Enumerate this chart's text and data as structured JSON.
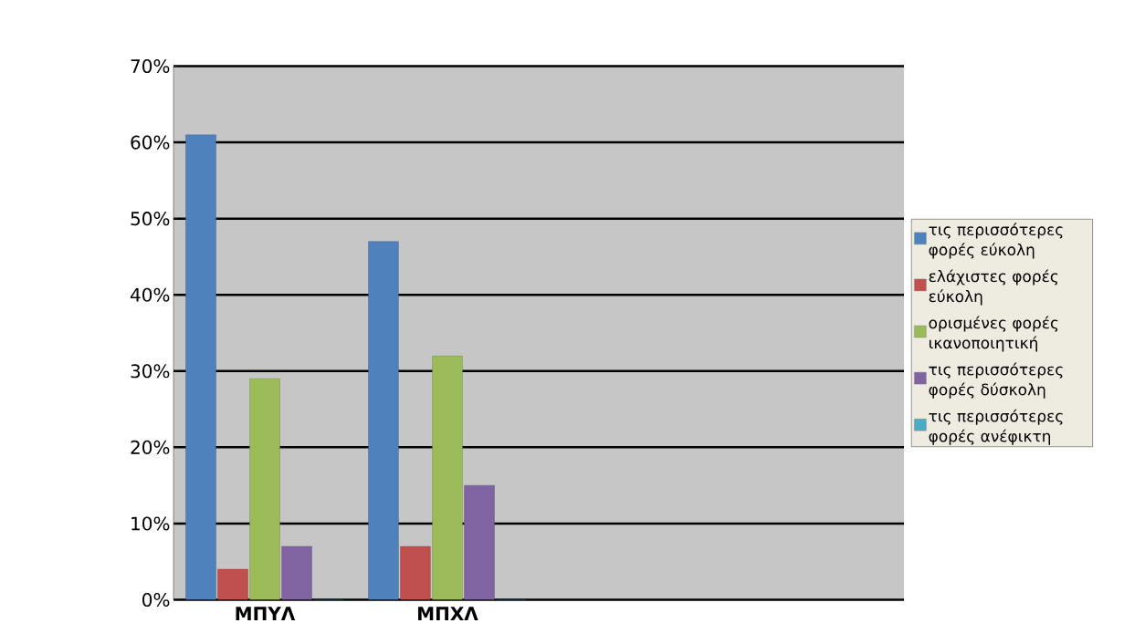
{
  "chart_data": {
    "type": "bar",
    "categories": [
      "ΜΠΥΛ",
      "ΜΠΧΛ",
      null,
      null
    ],
    "series": [
      {
        "name": "τις περισσότερες φορές εύκολη",
        "color": "#4f81bd",
        "values": [
          61,
          47,
          null,
          null
        ]
      },
      {
        "name": "ελάχιστες φορές εύκολη",
        "color": "#c0504d",
        "values": [
          4,
          7,
          null,
          null
        ]
      },
      {
        "name": "ορισμένες φορές ικανοποιητική",
        "color": "#9bbb59",
        "values": [
          29,
          32,
          null,
          null
        ]
      },
      {
        "name": "τις περισσότερες φορές δύσκολη",
        "color": "#8064a2",
        "values": [
          7,
          15,
          null,
          null
        ]
      },
      {
        "name": "τις περισσότερες φορές ανέφικτη",
        "color": "#4bacc6",
        "values": [
          0,
          0,
          null,
          null
        ]
      }
    ],
    "ylim": [
      0,
      70
    ],
    "yticks": [
      {
        "value": 0,
        "label": "0%"
      },
      {
        "value": 10,
        "label": "10%"
      },
      {
        "value": 20,
        "label": "20%"
      },
      {
        "value": 30,
        "label": "30%"
      },
      {
        "value": 40,
        "label": "40%"
      },
      {
        "value": 50,
        "label": "50%"
      },
      {
        "value": 60,
        "label": "60%"
      },
      {
        "value": 70,
        "label": "70%"
      }
    ],
    "grid": "y",
    "legend": "right"
  }
}
